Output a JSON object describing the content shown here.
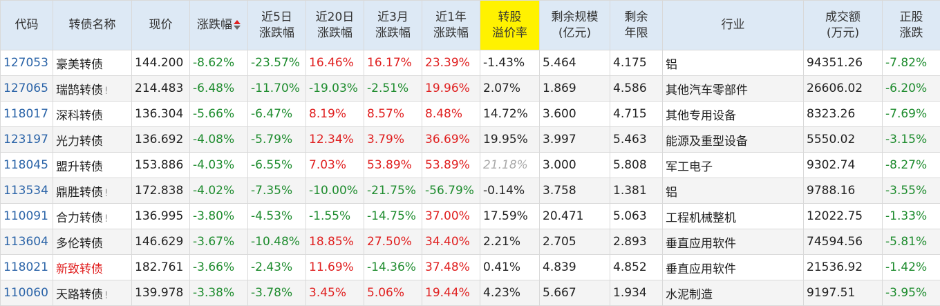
{
  "headers": [
    {
      "line1": "代码",
      "line2": ""
    },
    {
      "line1": "转债名称",
      "line2": ""
    },
    {
      "line1": "现价",
      "line2": ""
    },
    {
      "line1": "涨跌幅",
      "line2": ""
    },
    {
      "line1": "近5日",
      "line2": "涨跌幅"
    },
    {
      "line1": "近20日",
      "line2": "涨跌幅"
    },
    {
      "line1": "近3月",
      "line2": "涨跌幅"
    },
    {
      "line1": "近1年",
      "line2": "涨跌幅"
    },
    {
      "line1": "转股",
      "line2": "溢价率"
    },
    {
      "line1": "剩余规模",
      "line2": "(亿元)"
    },
    {
      "line1": "剩余",
      "line2": "年限"
    },
    {
      "line1": "行业",
      "line2": ""
    },
    {
      "line1": "成交额",
      "line2": "(万元)"
    },
    {
      "line1": "正股",
      "line2": "涨跌"
    }
  ],
  "colors": {
    "up": "#e02020",
    "down": "#1e8c2e",
    "code": "#2b64a8",
    "header_bg": "#dde9f5",
    "highlight": "#fff200"
  },
  "rows": [
    {
      "code": "127053",
      "name": "豪美转债",
      "mark": "",
      "price": "144.200",
      "chg": "-8.62%",
      "d5": "-23.57%",
      "d20": "16.46%",
      "m3": "16.17%",
      "y1": "23.39%",
      "premium": "-1.43%",
      "scale": "5.464",
      "years": "4.175",
      "industry": "铝",
      "turnover": "94351.26",
      "stock": "-7.82%"
    },
    {
      "code": "127065",
      "name": "瑞鹄转债",
      "mark": "!",
      "price": "214.483",
      "chg": "-6.48%",
      "d5": "-11.70%",
      "d20": "-19.03%",
      "m3": "-2.51%",
      "y1": "19.96%",
      "premium": "2.07%",
      "scale": "1.869",
      "years": "4.586",
      "industry": "其他汽车零部件",
      "turnover": "26606.02",
      "stock": "-6.20%"
    },
    {
      "code": "118017",
      "name": "深科转债",
      "mark": "",
      "price": "136.304",
      "chg": "-5.66%",
      "d5": "-6.47%",
      "d20": "8.19%",
      "m3": "8.57%",
      "y1": "8.48%",
      "premium": "14.72%",
      "scale": "3.600",
      "years": "4.715",
      "industry": "其他专用设备",
      "turnover": "8323.26",
      "stock": "-7.69%"
    },
    {
      "code": "123197",
      "name": "光力转债",
      "mark": "",
      "price": "136.692",
      "chg": "-4.08%",
      "d5": "-5.79%",
      "d20": "12.34%",
      "m3": "3.79%",
      "y1": "36.69%",
      "premium": "19.95%",
      "scale": "3.997",
      "years": "5.463",
      "industry": "能源及重型设备",
      "turnover": "5550.02",
      "stock": "-3.15%"
    },
    {
      "code": "118045",
      "name": "盟升转债",
      "mark": "",
      "price": "153.886",
      "chg": "-4.03%",
      "d5": "-6.55%",
      "d20": "7.03%",
      "m3": "53.89%",
      "y1": "53.89%",
      "premium": "21.18%",
      "scale": "3.000",
      "years": "5.808",
      "industry": "军工电子",
      "turnover": "9302.74",
      "stock": "-8.27%"
    },
    {
      "code": "113534",
      "name": "鼎胜转债",
      "mark": "!",
      "price": "172.838",
      "chg": "-4.02%",
      "d5": "-7.35%",
      "d20": "-10.00%",
      "m3": "-21.75%",
      "y1": "-56.79%",
      "premium": "-0.14%",
      "scale": "3.758",
      "years": "1.381",
      "industry": "铝",
      "turnover": "9788.16",
      "stock": "-3.55%"
    },
    {
      "code": "110091",
      "name": "合力转债",
      "mark": "!",
      "price": "136.995",
      "chg": "-3.80%",
      "d5": "-4.53%",
      "d20": "-1.55%",
      "m3": "-14.75%",
      "y1": "37.00%",
      "premium": "17.59%",
      "scale": "20.471",
      "years": "5.063",
      "industry": "工程机械整机",
      "turnover": "12022.75",
      "stock": "-1.33%"
    },
    {
      "code": "113604",
      "name": "多伦转债",
      "mark": "",
      "price": "146.629",
      "chg": "-3.67%",
      "d5": "-10.48%",
      "d20": "18.85%",
      "m3": "27.50%",
      "y1": "34.40%",
      "premium": "2.21%",
      "scale": "2.705",
      "years": "2.893",
      "industry": "垂直应用软件",
      "turnover": "74594.56",
      "stock": "-5.81%"
    },
    {
      "code": "118021",
      "name": "新致转债",
      "mark": "",
      "price": "182.761",
      "chg": "-3.66%",
      "d5": "-2.43%",
      "d20": "11.69%",
      "m3": "-14.36%",
      "y1": "37.48%",
      "premium": "0.41%",
      "scale": "4.839",
      "years": "4.852",
      "industry": "垂直应用软件",
      "turnover": "21536.92",
      "stock": "-1.42%"
    },
    {
      "code": "110060",
      "name": "天路转债",
      "mark": "!",
      "price": "139.978",
      "chg": "-3.38%",
      "d5": "-3.78%",
      "d20": "3.45%",
      "m3": "5.06%",
      "y1": "19.44%",
      "premium": "4.23%",
      "scale": "5.667",
      "years": "1.934",
      "industry": "水泥制造",
      "turnover": "9197.51",
      "stock": "-3.95%"
    }
  ]
}
